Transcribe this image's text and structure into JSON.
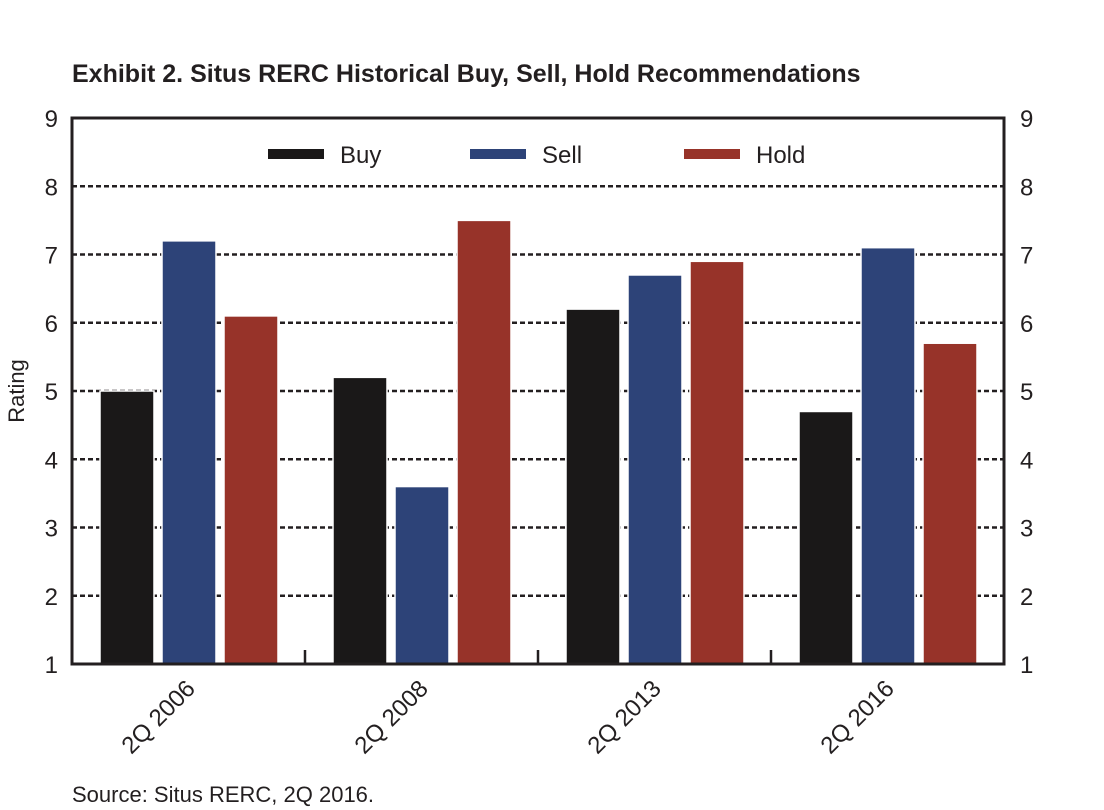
{
  "chart_data": {
    "type": "bar",
    "title": "Exhibit 2. Situs RERC Historical Buy, Sell, Hold Recommendations",
    "ylabel": "Rating",
    "xlabel": "",
    "categories": [
      "2Q 2006",
      "2Q 2008",
      "2Q 2013",
      "2Q 2016"
    ],
    "series": [
      {
        "name": "Buy",
        "color": "#1a1818",
        "values": [
          5.0,
          5.2,
          6.2,
          4.7
        ]
      },
      {
        "name": "Sell",
        "color": "#2d4378",
        "values": [
          7.2,
          3.6,
          6.7,
          7.1
        ]
      },
      {
        "name": "Hold",
        "color": "#973329",
        "values": [
          6.1,
          7.5,
          6.9,
          5.7
        ]
      }
    ],
    "ylim": [
      1,
      9
    ],
    "yticks": [
      "1",
      "2",
      "3",
      "4",
      "5",
      "6",
      "7",
      "8",
      "9"
    ],
    "grid": true,
    "legend_position": "top",
    "source": "Source: Situs RERC, 2Q 2016."
  }
}
